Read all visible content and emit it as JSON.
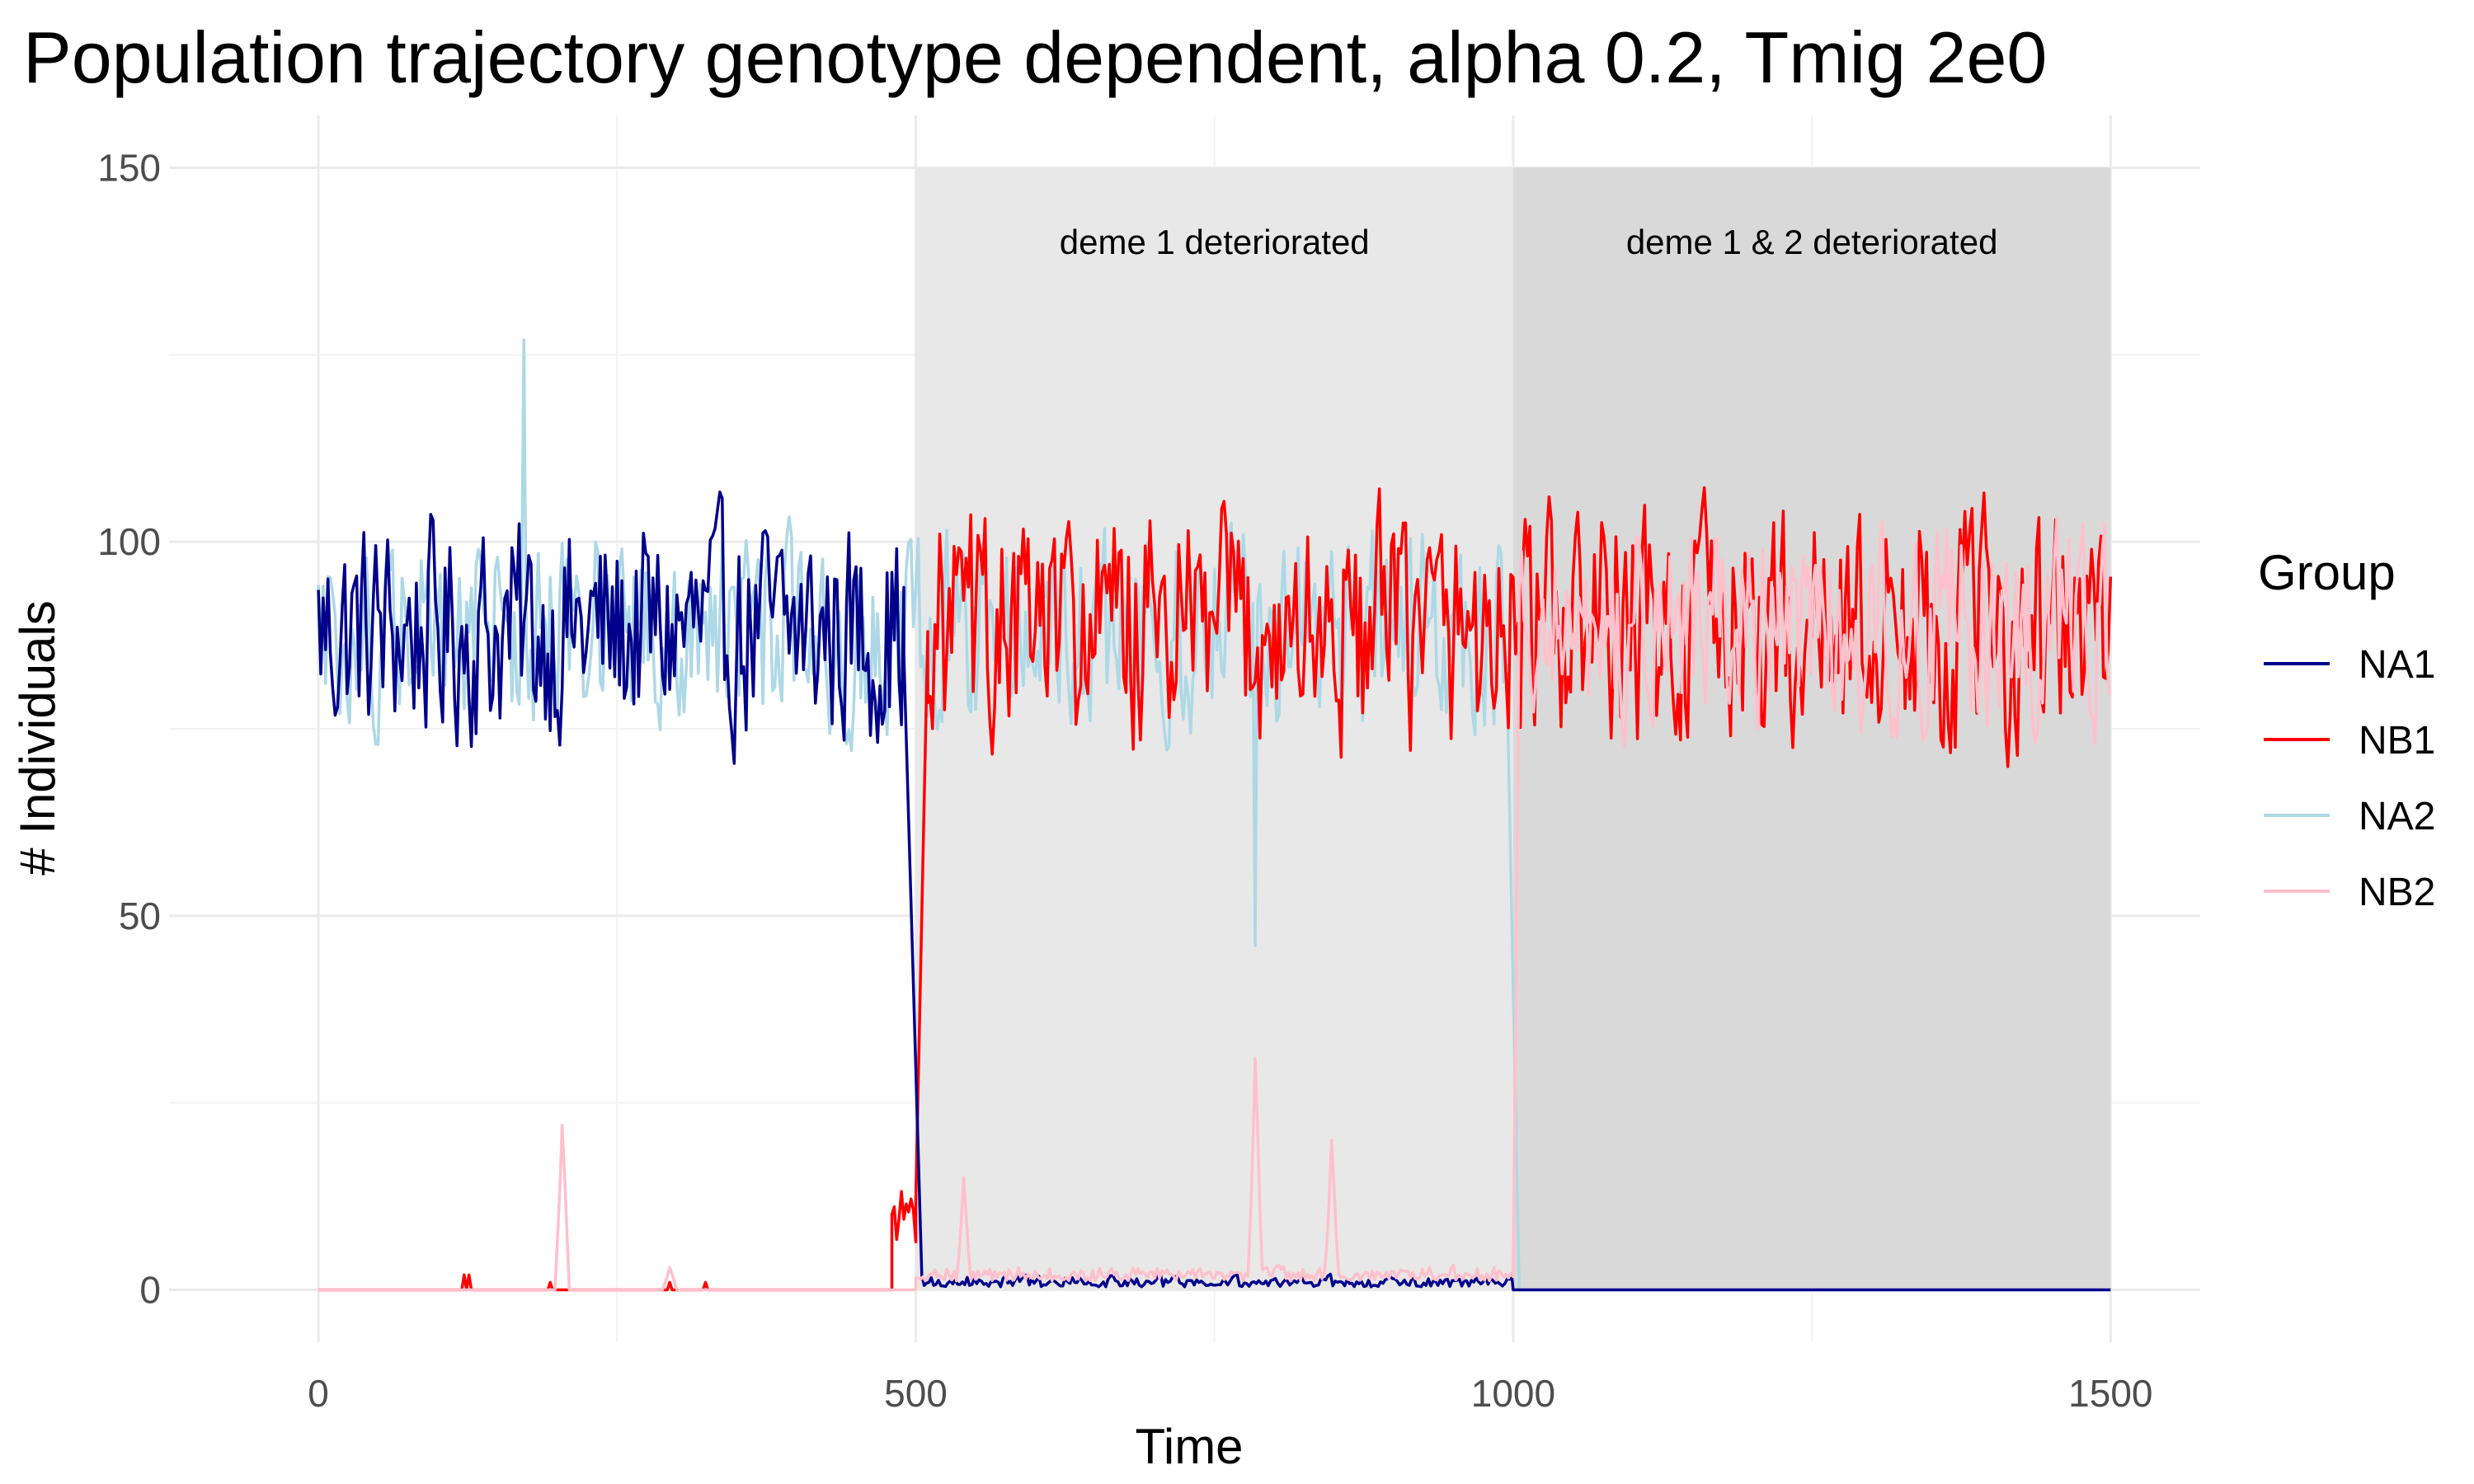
{
  "chart_data": {
    "type": "line",
    "title": "Population trajectory genotype dependent, alpha 0.2, Tmig 2e0",
    "xlabel": "Time",
    "ylabel": "# Individuals",
    "xlim": [
      -125,
      1575
    ],
    "ylim": [
      -7,
      157
    ],
    "x_ticks": [
      0,
      500,
      1000,
      1500
    ],
    "x_tick_labels": [
      "0",
      "500",
      "1000",
      "1500"
    ],
    "y_ticks": [
      0,
      50,
      100,
      150
    ],
    "y_tick_labels": [
      "0",
      "50",
      "100",
      "150"
    ],
    "grid": true,
    "legend": {
      "title": "Group",
      "position": "right",
      "entries": [
        "NA1",
        "NB1",
        "NA2",
        "NB2"
      ]
    },
    "shaded_regions": [
      {
        "x_start": 500,
        "x_end": 1000,
        "y_start": 0,
        "y_end": 150,
        "label": "deme 1 deteriorated",
        "color": "#e8e8e8"
      },
      {
        "x_start": 1000,
        "x_end": 1500,
        "y_start": 0,
        "y_end": 150,
        "label": "deme 1 & 2 deteriorated",
        "color": "#d9d9d9"
      }
    ],
    "series": [
      {
        "name": "NA1",
        "color": "#00008b",
        "segments": [
          {
            "x_start": 0,
            "x_end": 490,
            "base": 88,
            "amplitude": 20
          },
          {
            "x_start": 490,
            "x_end": 505,
            "base": 0,
            "amplitude": 0,
            "ramp_from": 85,
            "ramp_to": 2
          },
          {
            "x_start": 505,
            "x_end": 1000,
            "base": 1,
            "amplitude": 3
          },
          {
            "x_start": 1000,
            "x_end": 1500,
            "base": 0,
            "amplitude": 0
          }
        ]
      },
      {
        "name": "NB1",
        "color": "#ff0000",
        "segments": [
          {
            "x_start": 0,
            "x_end": 480,
            "base": 0,
            "amplitude": 0
          },
          {
            "x_start": 480,
            "x_end": 500,
            "base": 10,
            "amplitude": 6
          },
          {
            "x_start": 500,
            "x_end": 510,
            "base": 0,
            "amplitude": 0,
            "ramp_from": 12,
            "ramp_to": 88
          },
          {
            "x_start": 510,
            "x_end": 1500,
            "base": 88,
            "amplitude": 22
          }
        ],
        "blips": [
          {
            "x": 122,
            "y": 2
          },
          {
            "x": 127,
            "y": 2
          },
          {
            "x": 195,
            "y": 1
          },
          {
            "x": 295,
            "y": 1
          },
          {
            "x": 325,
            "y": 1
          }
        ]
      },
      {
        "name": "NA2",
        "color": "#add8e6",
        "segments": [
          {
            "x_start": 0,
            "x_end": 995,
            "base": 88,
            "amplitude": 18
          },
          {
            "x_start": 995,
            "x_end": 1005,
            "base": 0,
            "amplitude": 0,
            "ramp_from": 80,
            "ramp_to": 0
          },
          {
            "x_start": 1005,
            "x_end": 1500,
            "base": 0,
            "amplitude": 0
          }
        ],
        "peaks": [
          {
            "x": 172,
            "y": 127
          },
          {
            "x": 785,
            "y": 46
          }
        ]
      },
      {
        "name": "NB2",
        "color": "#ffc0cb",
        "segments": [
          {
            "x_start": 0,
            "x_end": 500,
            "base": 0,
            "amplitude": 0
          },
          {
            "x_start": 500,
            "x_end": 1000,
            "base": 2,
            "amplitude": 4
          },
          {
            "x_start": 1000,
            "x_end": 1005,
            "base": 0,
            "amplitude": 0,
            "ramp_from": 2,
            "ramp_to": 88
          },
          {
            "x_start": 1005,
            "x_end": 1500,
            "base": 89,
            "amplitude": 18
          }
        ],
        "peaks": [
          {
            "x": 205,
            "y": 22
          },
          {
            "x": 295,
            "y": 3
          },
          {
            "x": 540,
            "y": 15
          },
          {
            "x": 785,
            "y": 31
          },
          {
            "x": 848,
            "y": 20
          }
        ]
      }
    ]
  }
}
